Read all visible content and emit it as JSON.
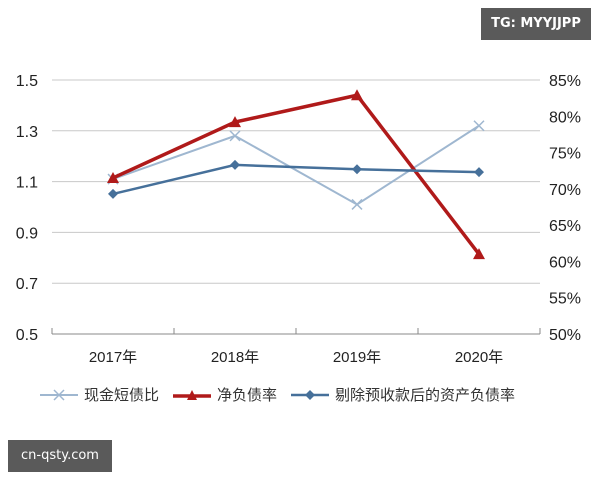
{
  "watermarks": {
    "top_right": "TG: MYYJJPP",
    "bottom_left": "cn-qsty.com"
  },
  "chart_data": {
    "type": "line",
    "title": "",
    "xlabel": "",
    "ylabel": "",
    "categories": [
      "2017年",
      "2018年",
      "2019年",
      "2020年"
    ],
    "left_axis": {
      "ticks": [
        "1.5",
        "1.3",
        "1.1",
        "0.9",
        "0.7",
        "0.5"
      ],
      "range": [
        0.5,
        1.5
      ]
    },
    "right_axis": {
      "ticks": [
        "85%",
        "80%",
        "75%",
        "70%",
        "65%",
        "60%",
        "55%",
        "50%"
      ],
      "range": [
        50,
        85
      ]
    },
    "grid": true,
    "legend_position": "bottom",
    "series": [
      {
        "name": "现金短债比",
        "axis": "left",
        "color": "#9fb7d0",
        "marker": "x",
        "values": [
          1.11,
          1.28,
          1.01,
          1.32
        ]
      },
      {
        "name": "净负债率",
        "axis": "right",
        "unit": "%",
        "color": "#b01a1a",
        "marker": "triangle",
        "values": [
          71.5,
          79.2,
          82.9,
          61.0
        ]
      },
      {
        "name": "剔除预收款后的资产负债率",
        "axis": "right",
        "unit": "%",
        "color": "#46709a",
        "marker": "diamond",
        "values": [
          69.3,
          73.3,
          72.7,
          72.3
        ]
      }
    ]
  }
}
